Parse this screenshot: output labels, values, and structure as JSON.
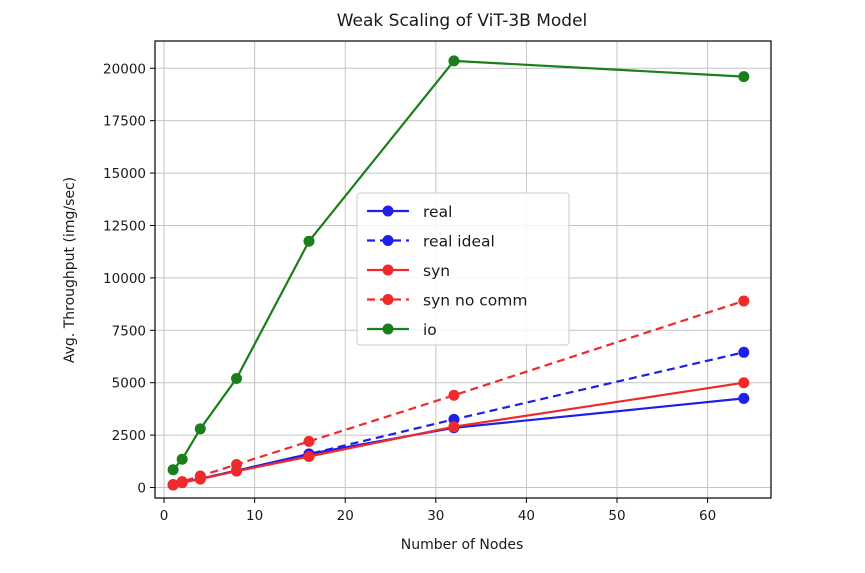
{
  "chart_data": {
    "type": "line",
    "title": "Weak Scaling of ViT-3B Model",
    "xlabel": "Number of Nodes",
    "ylabel": "Avg. Throughput (img/sec)",
    "xlim": [
      -1,
      67
    ],
    "ylim": [
      -500,
      21300
    ],
    "xticks": [
      0,
      10,
      20,
      30,
      40,
      50,
      60
    ],
    "yticks": [
      0,
      2500,
      5000,
      7500,
      10000,
      12500,
      15000,
      17500,
      20000
    ],
    "grid": true,
    "legend_position": "center",
    "x": [
      1,
      2,
      4,
      8,
      16,
      32,
      64
    ],
    "series": [
      {
        "name": "real",
        "color": "#1f1fe6",
        "dashed": false,
        "values": [
          130,
          250,
          420,
          800,
          1600,
          2850,
          4250
        ]
      },
      {
        "name": "real ideal",
        "color": "#1f1fe6",
        "dashed": true,
        "values": [
          130,
          250,
          420,
          800,
          1600,
          3250,
          6450
        ]
      },
      {
        "name": "syn",
        "color": "#ee2a2a",
        "dashed": false,
        "values": [
          120,
          230,
          400,
          780,
          1480,
          2900,
          5000
        ]
      },
      {
        "name": "syn no comm",
        "color": "#ee2a2a",
        "dashed": true,
        "values": [
          140,
          280,
          550,
          1100,
          2200,
          4400,
          8900
        ]
      },
      {
        "name": "io",
        "color": "#1a7f1a",
        "dashed": false,
        "values": [
          850,
          1350,
          2800,
          5200,
          11750,
          20350,
          19600
        ]
      }
    ]
  }
}
